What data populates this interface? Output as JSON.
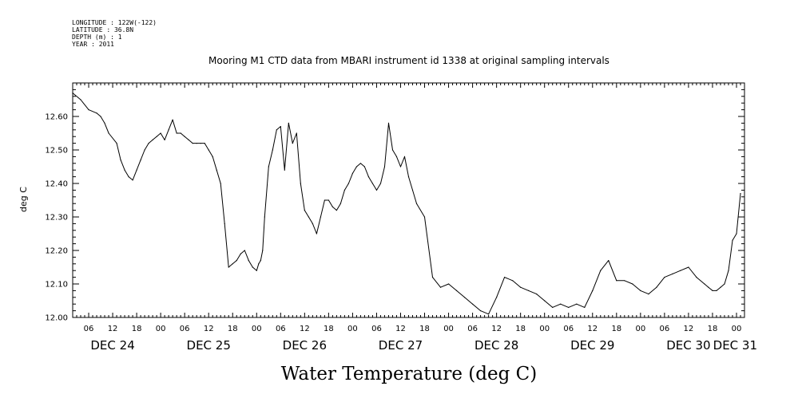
{
  "meta": {
    "longitude": "LONGITUDE : 122W(-122)",
    "latitude": "LATITUDE : 36.8N",
    "depth": "DEPTH (m) : 1",
    "year": "YEAR : 2011"
  },
  "chart_data": {
    "type": "line",
    "title": "Mooring M1 CTD data from MBARI instrument id 1338 at original sampling intervals",
    "xlabel": "Water Temperature (deg C)",
    "ylabel": "deg C",
    "ylim": [
      12.0,
      12.7
    ],
    "yticks": [
      "12.00",
      "12.10",
      "12.20",
      "12.30",
      "12.40",
      "12.50",
      "12.60"
    ],
    "x_unit": "hours since Dec 24 00:00",
    "xlim": [
      2,
      170
    ],
    "hour_ticks": [
      "06",
      "12",
      "18",
      "00",
      "06",
      "12",
      "18",
      "00",
      "06",
      "12",
      "18",
      "00",
      "06",
      "12",
      "18",
      "00",
      "06",
      "12",
      "18",
      "00",
      "06",
      "12",
      "18",
      "00",
      "06",
      "12",
      "18",
      "00"
    ],
    "day_labels": [
      "DEC 24",
      "DEC 25",
      "DEC 26",
      "DEC 27",
      "DEC 28",
      "DEC 29",
      "DEC 30",
      "DEC 31"
    ],
    "grid": false,
    "series": [
      {
        "color": "#000000",
        "x": [
          2,
          4,
          6,
          8,
          9,
          10,
          11,
          13,
          14,
          15,
          16,
          17,
          18,
          19,
          20,
          21,
          22,
          23,
          24,
          25,
          26,
          27,
          28,
          29,
          30,
          31,
          32,
          33,
          34,
          35,
          36,
          37,
          38,
          39,
          40,
          41,
          42,
          43,
          44,
          45,
          46,
          47,
          48,
          48.5,
          49,
          49.5,
          50,
          51,
          52,
          53,
          54,
          55,
          56,
          57,
          58,
          59,
          60,
          61,
          62,
          63,
          64,
          65,
          66,
          67,
          68,
          69,
          70,
          71,
          72,
          73,
          74,
          75,
          76,
          77,
          78,
          79,
          80,
          81,
          82,
          83,
          84,
          85,
          86,
          87,
          88,
          90,
          92,
          94,
          96,
          98,
          100,
          102,
          104,
          106,
          108,
          110,
          112,
          114,
          116,
          118,
          120,
          122,
          124,
          126,
          128,
          130,
          132,
          134,
          136,
          138,
          140,
          142,
          144,
          146,
          148,
          150,
          152,
          154,
          156,
          158,
          160,
          161,
          162,
          163,
          164,
          165,
          166,
          167,
          168,
          169
        ],
        "y": [
          12.67,
          12.65,
          12.62,
          12.61,
          12.6,
          12.58,
          12.55,
          12.52,
          12.47,
          12.44,
          12.42,
          12.41,
          12.44,
          12.47,
          12.5,
          12.52,
          12.53,
          12.54,
          12.55,
          12.53,
          12.56,
          12.59,
          12.55,
          12.55,
          12.54,
          12.53,
          12.52,
          12.52,
          12.52,
          12.52,
          12.5,
          12.48,
          12.44,
          12.4,
          12.28,
          12.15,
          12.16,
          12.17,
          12.19,
          12.2,
          12.17,
          12.15,
          12.14,
          12.16,
          12.17,
          12.2,
          12.3,
          12.45,
          12.5,
          12.56,
          12.57,
          12.44,
          12.58,
          12.52,
          12.55,
          12.4,
          12.32,
          12.3,
          12.28,
          12.25,
          12.3,
          12.35,
          12.35,
          12.33,
          12.32,
          12.34,
          12.38,
          12.4,
          12.43,
          12.45,
          12.46,
          12.45,
          12.42,
          12.4,
          12.38,
          12.4,
          12.45,
          12.58,
          12.5,
          12.48,
          12.45,
          12.48,
          12.42,
          12.38,
          12.34,
          12.3,
          12.12,
          12.09,
          12.1,
          12.08,
          12.06,
          12.04,
          12.02,
          12.01,
          12.06,
          12.12,
          12.11,
          12.09,
          12.08,
          12.07,
          12.05,
          12.03,
          12.04,
          12.03,
          12.04,
          12.03,
          12.08,
          12.14,
          12.17,
          12.11,
          12.11,
          12.1,
          12.08,
          12.07,
          12.09,
          12.12,
          12.13,
          12.14,
          12.15,
          12.12,
          12.1,
          12.09,
          12.08,
          12.08,
          12.09,
          12.1,
          12.14,
          12.23,
          12.25,
          12.37
        ]
      }
    ]
  }
}
